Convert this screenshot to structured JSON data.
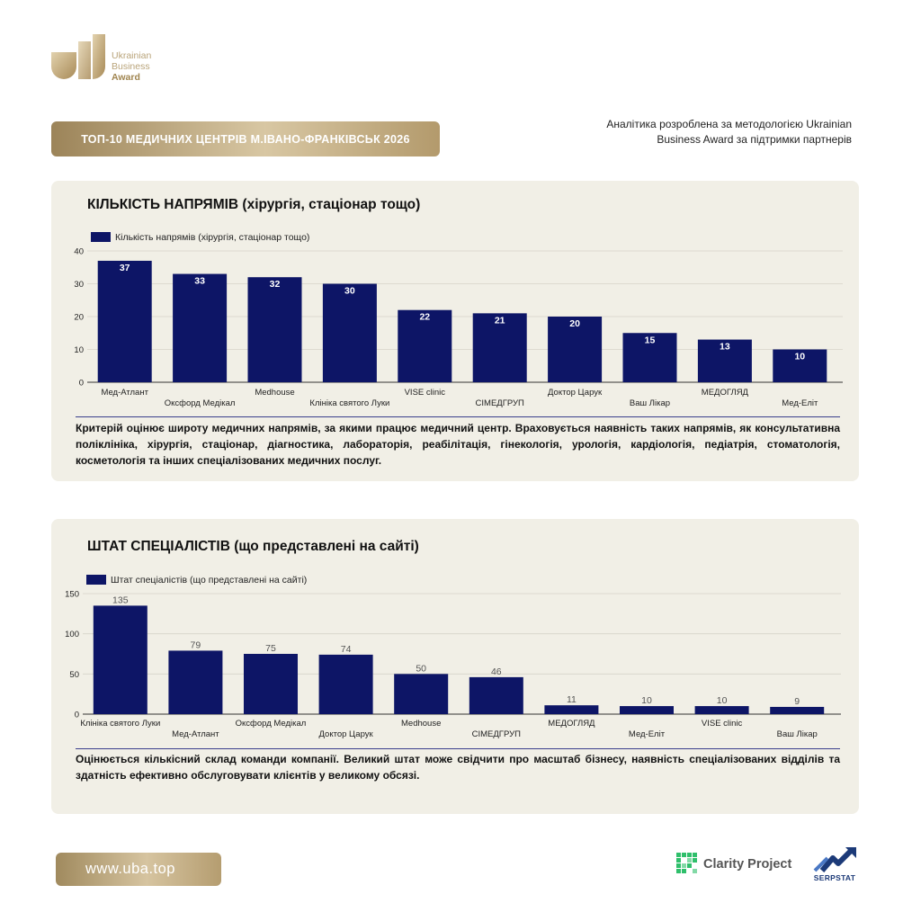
{
  "logo": {
    "line1": "Ukrainian",
    "line2": "Business",
    "line3": "Award"
  },
  "header": {
    "title": "ТОП-10 МЕДИЧНИХ ЦЕНТРІВ М.ІВАНО-ФРАНКІВСЬК 2026",
    "analytics_line1": "Аналітика розроблена за методологією Ukrainian",
    "analytics_line2": "Business Award за підтримки партнерів"
  },
  "card1": {
    "title": "КІЛЬКІСТЬ НАПРЯМІВ (хірургія, стаціонар  тощо)",
    "description": "Критерій оцінює широту медичних напрямів, за якими працює медичний центр. Враховується наявність таких напрямів, як консультативна поліклініка, хірургія, стаціонар, діагностика, лабораторія, реабілітація, гінекологія, урологія, кардіологія, педіатрія, стоматологія, косметологія та інших спеціалізованих медичних послуг."
  },
  "card2": {
    "title": "ШТАТ СПЕЦІАЛІСТІВ (що представлені на сайті)",
    "description": "Оцінюється кількісний склад команди компанії. Великий штат може свідчити про масштаб бізнесу, наявність спеціалізованих відділів та здатність ефективно обслуговувати клієнтів у великому обсязі."
  },
  "footer": {
    "url": "www.uba.top",
    "partner1": "Clarity Project",
    "partner2": "SERPSTAT"
  },
  "colors": {
    "bar": "#0d1566",
    "gold": "#b39a6c",
    "card_bg": "#f1efe6"
  },
  "chart_data": [
    {
      "type": "bar",
      "series": [
        {
          "name": "Кількість напрямів (хірургія, стаціонар тощо)",
          "values": [
            37,
            33,
            32,
            30,
            22,
            21,
            20,
            15,
            13,
            10
          ]
        }
      ],
      "categories": [
        "Мед-Атлант",
        "Оксфорд Медікал",
        "Medhouse",
        "Клініка святого Луки",
        "VISE clinic",
        "СІМЕДГРУП",
        "Доктор Царук",
        "Ваш Лікар",
        "МЕДОГЛЯД",
        "Мед-Еліт"
      ],
      "yticks": [
        0,
        10,
        20,
        30,
        40
      ],
      "ylim": [
        0,
        40
      ],
      "label_position": "inside",
      "legend": "top-left",
      "grid": true
    },
    {
      "type": "bar",
      "series": [
        {
          "name": "Штат спеціалістів (що представлені на сайті)",
          "values": [
            135,
            79,
            75,
            74,
            50,
            46,
            11,
            10,
            10,
            9
          ]
        }
      ],
      "categories": [
        "Клініка святого Луки",
        "Мед-Атлант",
        "Оксфорд Медікал",
        "Доктор Царук",
        "Medhouse",
        "СІМЕДГРУП",
        "МЕДОГЛЯД",
        "Мед-Еліт",
        "VISE clinic",
        "Ваш Лікар"
      ],
      "yticks": [
        0,
        50,
        100,
        150
      ],
      "ylim": [
        0,
        150
      ],
      "label_position": "above",
      "legend": "top-left",
      "grid": true
    }
  ]
}
